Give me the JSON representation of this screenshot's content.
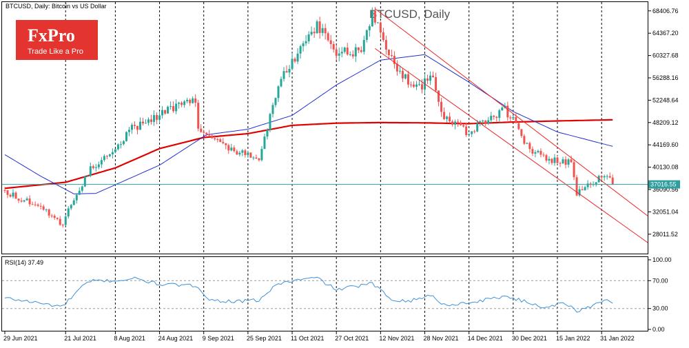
{
  "header": {
    "symbol_line": "BTCUSD, Daily:  Bitcoin vs US Dollar"
  },
  "logo": {
    "name": "FxPro",
    "tagline": "Trade Like a Pro"
  },
  "watermark": {
    "text": "BTCUSD, Daily"
  },
  "colors": {
    "bull": "#26a69a",
    "bear": "#ef5350",
    "ma_fast": "#1f2fcf",
    "ma_slow": "#e00000",
    "channel": "#ee2222",
    "price_line": "#2e9e9e",
    "rsi": "#3c90d8",
    "logo_bg": "#e3342f"
  },
  "chart_data": [
    {
      "type": "candlestick",
      "title": "BTCUSD, Daily",
      "y_ticks": [
        "68406.76",
        "64367.20",
        "60327.68",
        "56288.16",
        "52248.64",
        "48209.12",
        "44169.60",
        "40130.08",
        "36090.56",
        "32051.04",
        "28011.52"
      ],
      "ylim": [
        24500,
        70000
      ],
      "current_price_label": "37016.55",
      "current_price": 37016.55,
      "x_labels": [
        "29 Jun 2021",
        "21 Jul 2021",
        "8 Aug 2021",
        "24 Aug 2021",
        "9 Sep 2021",
        "25 Sep 2021",
        "11 Oct 2021",
        "27 Oct 2021",
        "12 Nov 2021",
        "28 Nov 2021",
        "14 Dec 2021",
        "30 Dec 2021",
        "15 Jan 2022",
        "31 Jan 2022"
      ],
      "grid": "vertical dashed at date labels",
      "close_waypoints": [
        {
          "date": "29 Jun 2021",
          "close": 35800
        },
        {
          "date": "6 Jul 2021",
          "close": 34200
        },
        {
          "date": "12 Jul 2021",
          "close": 33000
        },
        {
          "date": "20 Jul 2021",
          "close": 29800
        },
        {
          "date": "24 Jul 2021",
          "close": 34500
        },
        {
          "date": "30 Jul 2021",
          "close": 39800
        },
        {
          "date": "6 Aug 2021",
          "close": 43000
        },
        {
          "date": "14 Aug 2021",
          "close": 47000
        },
        {
          "date": "23 Aug 2021",
          "close": 49500
        },
        {
          "date": "6 Sep 2021",
          "close": 52500
        },
        {
          "date": "7 Sep 2021",
          "close": 46500
        },
        {
          "date": "13 Sep 2021",
          "close": 45500
        },
        {
          "date": "20 Sep 2021",
          "close": 43000
        },
        {
          "date": "29 Sep 2021",
          "close": 41800
        },
        {
          "date": "6 Oct 2021",
          "close": 55000
        },
        {
          "date": "15 Oct 2021",
          "close": 62000
        },
        {
          "date": "20 Oct 2021",
          "close": 66000
        },
        {
          "date": "28 Oct 2021",
          "close": 60500
        },
        {
          "date": "5 Nov 2021",
          "close": 61500
        },
        {
          "date": "9 Nov 2021",
          "close": 67500
        },
        {
          "date": "18 Nov 2021",
          "close": 57000
        },
        {
          "date": "26 Nov 2021",
          "close": 54500
        },
        {
          "date": "1 Dec 2021",
          "close": 57000
        },
        {
          "date": "4 Dec 2021",
          "close": 49500
        },
        {
          "date": "13 Dec 2021",
          "close": 46500
        },
        {
          "date": "27 Dec 2021",
          "close": 50800
        },
        {
          "date": "5 Jan 2022",
          "close": 43500
        },
        {
          "date": "10 Jan 2022",
          "close": 41800
        },
        {
          "date": "20 Jan 2022",
          "close": 40800
        },
        {
          "date": "22 Jan 2022",
          "close": 35500
        },
        {
          "date": "28 Jan 2022",
          "close": 37500
        },
        {
          "date": "2 Feb 2022",
          "close": 38500
        },
        {
          "date": "4 Feb 2022",
          "close": 37016.55
        }
      ],
      "moving_averages": [
        {
          "name": "MA fast (blue)",
          "color": "#1f2fcf",
          "values": [
            {
              "date": "29 Jun 2021",
              "value": 42400
            },
            {
              "date": "12 Jul 2021",
              "value": 38500
            },
            {
              "date": "24 Jul 2021",
              "value": 35300
            },
            {
              "date": "1 Aug 2021",
              "value": 35400
            },
            {
              "date": "24 Aug 2021",
              "value": 40500
            },
            {
              "date": "10 Sep 2021",
              "value": 46000
            },
            {
              "date": "25 Sep 2021",
              "value": 47000
            },
            {
              "date": "11 Oct 2021",
              "value": 49500
            },
            {
              "date": "27 Oct 2021",
              "value": 55000
            },
            {
              "date": "12 Nov 2021",
              "value": 59500
            },
            {
              "date": "28 Nov 2021",
              "value": 60500
            },
            {
              "date": "14 Dec 2021",
              "value": 55500
            },
            {
              "date": "30 Dec 2021",
              "value": 50200
            },
            {
              "date": "15 Jan 2022",
              "value": 46500
            },
            {
              "date": "4 Feb 2022",
              "value": 43900
            }
          ]
        },
        {
          "name": "MA slow (red)",
          "color": "#e00000",
          "values": [
            {
              "date": "29 Jun 2021",
              "value": 36300
            },
            {
              "date": "21 Jul 2021",
              "value": 37400
            },
            {
              "date": "8 Aug 2021",
              "value": 40000
            },
            {
              "date": "24 Aug 2021",
              "value": 43500
            },
            {
              "date": "9 Sep 2021",
              "value": 45500
            },
            {
              "date": "25 Sep 2021",
              "value": 46200
            },
            {
              "date": "11 Oct 2021",
              "value": 47700
            },
            {
              "date": "27 Oct 2021",
              "value": 48100
            },
            {
              "date": "12 Nov 2021",
              "value": 48200
            },
            {
              "date": "28 Nov 2021",
              "value": 48150
            },
            {
              "date": "14 Dec 2021",
              "value": 48000
            },
            {
              "date": "30 Dec 2021",
              "value": 48300
            },
            {
              "date": "15 Jan 2022",
              "value": 48500
            },
            {
              "date": "4 Feb 2022",
              "value": 48700
            }
          ]
        }
      ],
      "channel_lines": [
        {
          "from": {
            "date": "10 Nov 2021",
            "price": 68800
          },
          "to": {
            "date": "22 Feb 2022",
            "price": 29300
          }
        },
        {
          "from": {
            "date": "10 Nov 2021",
            "price": 61600
          },
          "to": {
            "date": "22 Feb 2022",
            "price": 24600
          }
        }
      ]
    },
    {
      "type": "line",
      "title": "RSI(14) 37.49",
      "label": "RSI(14) 37.49",
      "ylim": [
        0,
        100
      ],
      "y_ticks": [
        "100.00",
        "70.00",
        "30.00",
        "0.00"
      ],
      "levels": [
        70,
        30
      ],
      "values": [
        {
          "date": "29 Jun 2021",
          "value": 45
        },
        {
          "date": "8 Jul 2021",
          "value": 40
        },
        {
          "date": "16 Jul 2021",
          "value": 35
        },
        {
          "date": "20 Jul 2021",
          "value": 33
        },
        {
          "date": "27 Jul 2021",
          "value": 62
        },
        {
          "date": "31 Jul 2021",
          "value": 70
        },
        {
          "date": "8 Aug 2021",
          "value": 70
        },
        {
          "date": "15 Aug 2021",
          "value": 73
        },
        {
          "date": "24 Aug 2021",
          "value": 65
        },
        {
          "date": "7 Sep 2021",
          "value": 62
        },
        {
          "date": "11 Sep 2021",
          "value": 42
        },
        {
          "date": "21 Sep 2021",
          "value": 40
        },
        {
          "date": "29 Sep 2021",
          "value": 42
        },
        {
          "date": "6 Oct 2021",
          "value": 66
        },
        {
          "date": "15 Oct 2021",
          "value": 72
        },
        {
          "date": "20 Oct 2021",
          "value": 74
        },
        {
          "date": "27 Oct 2021",
          "value": 57
        },
        {
          "date": "9 Nov 2021",
          "value": 66
        },
        {
          "date": "16 Nov 2021",
          "value": 43
        },
        {
          "date": "23 Nov 2021",
          "value": 41
        },
        {
          "date": "1 Dec 2021",
          "value": 50
        },
        {
          "date": "4 Dec 2021",
          "value": 35
        },
        {
          "date": "14 Dec 2021",
          "value": 38
        },
        {
          "date": "27 Dec 2021",
          "value": 48
        },
        {
          "date": "5 Jan 2022",
          "value": 38
        },
        {
          "date": "10 Jan 2022",
          "value": 32
        },
        {
          "date": "18 Jan 2022",
          "value": 38
        },
        {
          "date": "22 Jan 2022",
          "value": 25
        },
        {
          "date": "28 Jan 2022",
          "value": 35
        },
        {
          "date": "1 Feb 2022",
          "value": 43
        },
        {
          "date": "4 Feb 2022",
          "value": 37.49
        }
      ]
    }
  ]
}
